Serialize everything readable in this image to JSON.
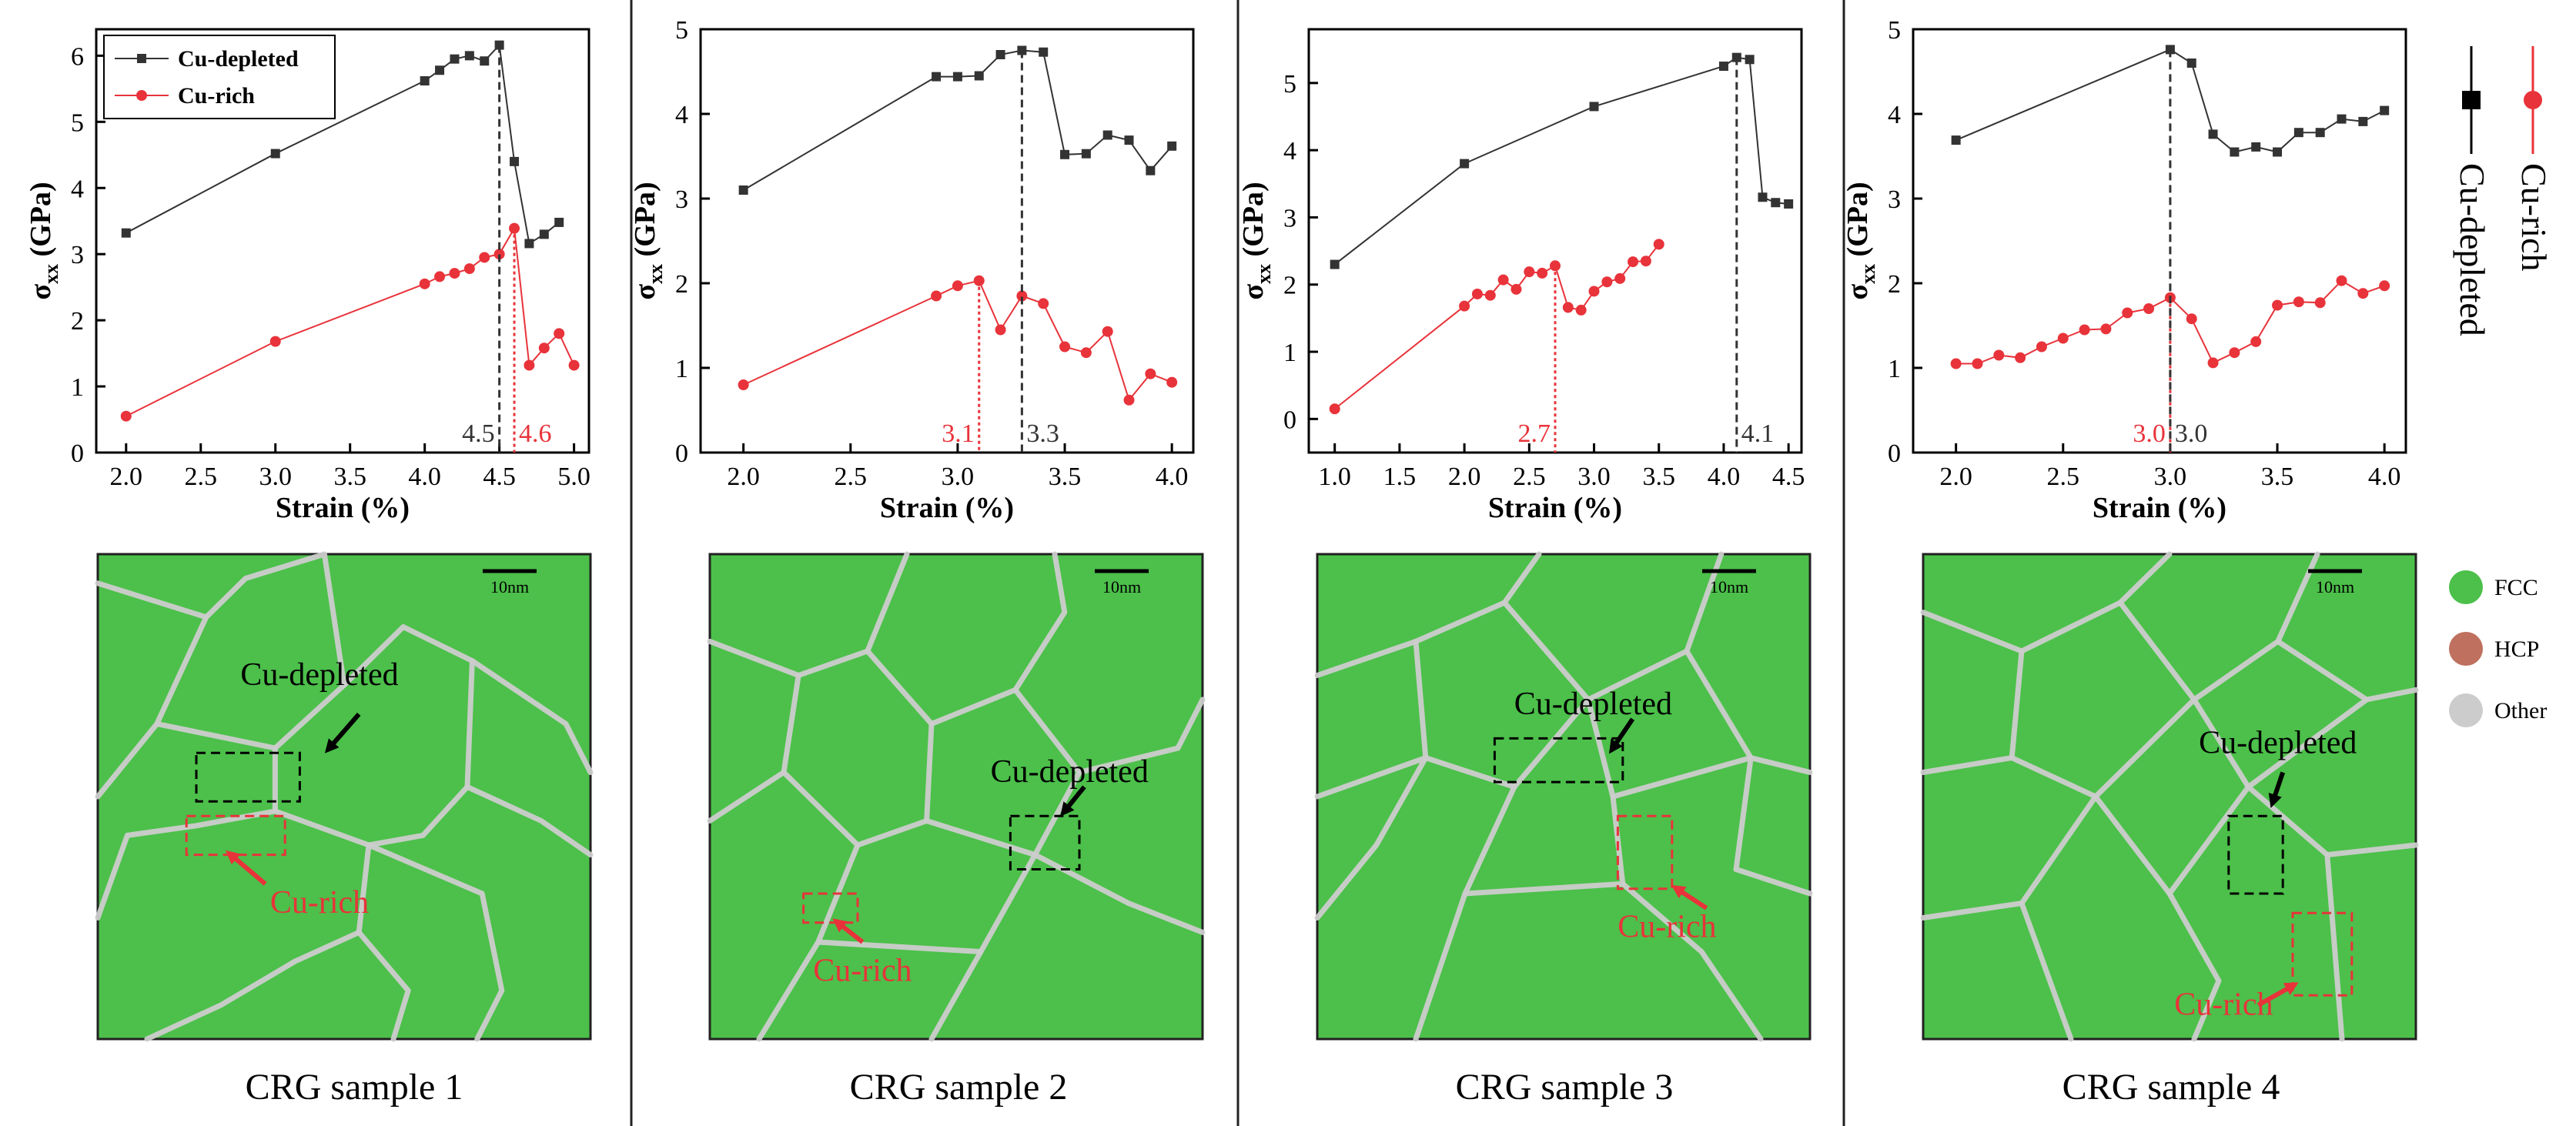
{
  "colors": {
    "depleted": "#333333",
    "rich": "#e8333a",
    "fcc": "#4cc04a",
    "hcp": "#c0705e",
    "other": "#cccccc"
  },
  "legend": {
    "depleted": "Cu-depleted",
    "rich": "Cu-rich"
  },
  "side_legend": {
    "depleted": "Cu-depleted",
    "rich": "Cu-rich"
  },
  "structure_key": [
    {
      "name": "FCC",
      "color": "#4cc04a"
    },
    {
      "name": "HCP",
      "color": "#c0705e"
    },
    {
      "name": "Other",
      "color": "#cccccc"
    }
  ],
  "chart_data": [
    {
      "type": "line",
      "xlabel": "Strain (%)",
      "ylabel_main": "σ",
      "ylabel_sub": "xx",
      "ylabel_unit": " (GPa)",
      "xlim": [
        1.8,
        5.1
      ],
      "ylim": [
        0,
        6.4
      ],
      "xticks": [
        2.0,
        2.5,
        3.0,
        3.5,
        4.0,
        4.5,
        5.0
      ],
      "yticks": [
        0,
        1,
        2,
        3,
        4,
        5,
        6
      ],
      "show_legend": true,
      "series": [
        {
          "name": "Cu-depleted",
          "x": [
            2.0,
            3.0,
            4.0,
            4.1,
            4.2,
            4.3,
            4.4,
            4.5,
            4.6,
            4.7,
            4.8,
            4.9
          ],
          "y": [
            3.32,
            4.52,
            5.62,
            5.78,
            5.95,
            6.0,
            5.92,
            6.16,
            4.4,
            3.16,
            3.3,
            3.48
          ]
        },
        {
          "name": "Cu-rich",
          "x": [
            2.0,
            3.0,
            4.0,
            4.1,
            4.2,
            4.3,
            4.4,
            4.5,
            4.6,
            4.7,
            4.8,
            4.9,
            5.0
          ],
          "y": [
            0.55,
            1.68,
            2.55,
            2.66,
            2.71,
            2.78,
            2.95,
            3.0,
            3.39,
            1.32,
            1.58,
            1.8,
            1.32
          ]
        }
      ],
      "markers": [
        {
          "series": "Cu-depleted",
          "x": 4.5,
          "y": 6.16,
          "label": "4.5",
          "color": "#333333",
          "side": "left"
        },
        {
          "series": "Cu-rich",
          "x": 4.6,
          "y": 3.39,
          "label": "4.6",
          "color": "#e8333a",
          "side": "right"
        }
      ]
    },
    {
      "type": "line",
      "xlabel": "Strain (%)",
      "ylabel_main": "σ",
      "ylabel_sub": "xx",
      "ylabel_unit": " (GPa)",
      "xlim": [
        1.8,
        4.1
      ],
      "ylim": [
        0,
        5
      ],
      "xticks": [
        2.0,
        2.5,
        3.0,
        3.5,
        4.0
      ],
      "yticks": [
        0,
        1,
        2,
        3,
        4,
        5
      ],
      "show_legend": false,
      "series": [
        {
          "name": "Cu-depleted",
          "x": [
            2.0,
            2.9,
            3.0,
            3.1,
            3.2,
            3.3,
            3.4,
            3.5,
            3.6,
            3.7,
            3.8,
            3.9,
            4.0
          ],
          "y": [
            3.1,
            4.44,
            4.44,
            4.45,
            4.7,
            4.75,
            4.73,
            3.52,
            3.53,
            3.75,
            3.69,
            3.33,
            3.62
          ]
        },
        {
          "name": "Cu-rich",
          "x": [
            2.0,
            2.9,
            3.0,
            3.1,
            3.2,
            3.3,
            3.4,
            3.5,
            3.6,
            3.7,
            3.8,
            3.9,
            4.0
          ],
          "y": [
            0.8,
            1.85,
            1.97,
            2.03,
            1.45,
            1.85,
            1.76,
            1.25,
            1.18,
            1.43,
            0.62,
            0.93,
            0.83
          ]
        }
      ],
      "markers": [
        {
          "series": "Cu-rich",
          "x": 3.1,
          "y": 2.03,
          "label": "3.1",
          "color": "#e8333a",
          "side": "left"
        },
        {
          "series": "Cu-depleted",
          "x": 3.3,
          "y": 4.75,
          "label": "3.3",
          "color": "#333333",
          "side": "right"
        }
      ]
    },
    {
      "type": "line",
      "xlabel": "Strain (%)",
      "ylabel_main": "σ",
      "ylabel_sub": "xx",
      "ylabel_unit": " (GPa)",
      "xlim": [
        0.8,
        4.6
      ],
      "ylim": [
        -0.5,
        5.8
      ],
      "xticks": [
        1.0,
        1.5,
        2.0,
        2.5,
        3.0,
        3.5,
        4.0,
        4.5
      ],
      "yticks": [
        0,
        1,
        2,
        3,
        4,
        5
      ],
      "show_legend": false,
      "series": [
        {
          "name": "Cu-depleted",
          "x": [
            1.0,
            2.0,
            3.0,
            4.0,
            4.1,
            4.2,
            4.3,
            4.4,
            4.5
          ],
          "y": [
            2.3,
            3.8,
            4.65,
            5.25,
            5.38,
            5.35,
            3.3,
            3.22,
            3.2
          ]
        },
        {
          "name": "Cu-rich",
          "x": [
            1.0,
            2.0,
            2.1,
            2.2,
            2.3,
            2.4,
            2.5,
            2.6,
            2.7,
            2.8,
            2.9,
            3.0,
            3.1,
            3.2,
            3.3,
            3.4,
            3.5
          ],
          "y": [
            0.15,
            1.68,
            1.86,
            1.84,
            2.07,
            1.93,
            2.19,
            2.17,
            2.28,
            1.66,
            1.62,
            1.9,
            2.04,
            2.09,
            2.34,
            2.35,
            2.6
          ]
        }
      ],
      "markers": [
        {
          "series": "Cu-rich",
          "x": 2.7,
          "y": 2.28,
          "label": "2.7",
          "color": "#e8333a",
          "side": "left"
        },
        {
          "series": "Cu-depleted",
          "x": 4.1,
          "y": 5.38,
          "label": "4.1",
          "color": "#333333",
          "side": "right"
        }
      ]
    },
    {
      "type": "line",
      "xlabel": "Strain (%)",
      "ylabel_main": "σ",
      "ylabel_sub": "xx",
      "ylabel_unit": " (GPa)",
      "xlim": [
        1.8,
        4.1
      ],
      "ylim": [
        0,
        5
      ],
      "xticks": [
        2.0,
        2.5,
        3.0,
        3.5,
        4.0
      ],
      "yticks": [
        0,
        1,
        2,
        3,
        4,
        5
      ],
      "show_legend": false,
      "series": [
        {
          "name": "Cu-depleted",
          "x": [
            2.0,
            3.0,
            3.1,
            3.2,
            3.3,
            3.4,
            3.5,
            3.6,
            3.7,
            3.8,
            3.9,
            4.0
          ],
          "y": [
            3.69,
            4.76,
            4.6,
            3.76,
            3.55,
            3.61,
            3.55,
            3.78,
            3.78,
            3.94,
            3.91,
            4.04
          ]
        },
        {
          "name": "Cu-rich",
          "x": [
            2.0,
            2.1,
            2.2,
            2.3,
            2.4,
            2.5,
            2.6,
            2.7,
            2.8,
            2.9,
            3.0,
            3.1,
            3.2,
            3.3,
            3.4,
            3.5,
            3.6,
            3.7,
            3.8,
            3.9,
            4.0
          ],
          "y": [
            1.05,
            1.05,
            1.15,
            1.12,
            1.25,
            1.35,
            1.45,
            1.46,
            1.65,
            1.7,
            1.83,
            1.58,
            1.06,
            1.18,
            1.31,
            1.74,
            1.78,
            1.77,
            2.03,
            1.88,
            1.97
          ]
        }
      ],
      "markers": [
        {
          "series": "Cu-rich",
          "x": 3.0,
          "y": 1.83,
          "label": "3.0",
          "color": "#e8333a",
          "side": "left"
        },
        {
          "series": "Cu-depleted",
          "x": 3.0,
          "y": 4.76,
          "label": "3.0",
          "color": "#333333",
          "side": "right"
        }
      ]
    }
  ],
  "micrographs": [
    {
      "scale_bar": "10nm",
      "caption": "CRG sample 1",
      "depleted_label": "Cu-depleted",
      "rich_label": "Cu-rich"
    },
    {
      "scale_bar": "10nm",
      "caption": "CRG sample 2",
      "depleted_label": "Cu-depleted",
      "rich_label": "Cu-rich"
    },
    {
      "scale_bar": "10nm",
      "caption": "CRG sample 3",
      "depleted_label": "Cu-depleted",
      "rich_label": "Cu-rich"
    },
    {
      "scale_bar": "10nm",
      "caption": "CRG sample 4",
      "depleted_label": "Cu-depleted",
      "rich_label": "Cu-rich"
    }
  ]
}
